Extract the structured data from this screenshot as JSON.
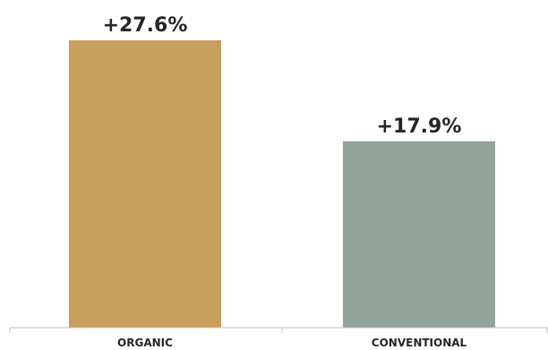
{
  "chart_data": {
    "type": "bar",
    "categories": [
      "ORGANIC",
      "CONVENTIONAL"
    ],
    "values": [
      27.6,
      17.9
    ],
    "data_labels": [
      "+27.6%",
      "+17.9%"
    ],
    "colors": [
      "#c89f5d",
      "#92a39a"
    ],
    "title": "",
    "xlabel": "",
    "ylabel": "",
    "ylim": [
      0,
      27.6
    ],
    "grid": false,
    "legend": "none"
  }
}
